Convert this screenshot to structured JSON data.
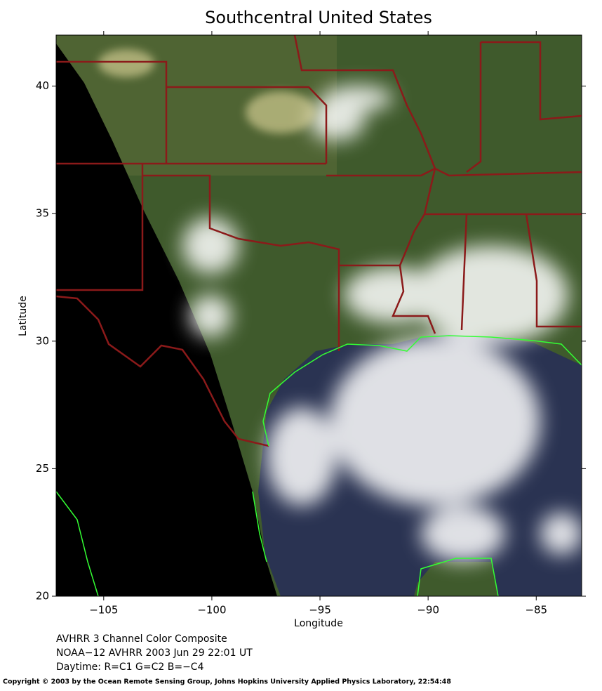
{
  "chart_data": {
    "type": "image",
    "title": "Southcentral United States",
    "x_label": "Longitude",
    "y_label": "Latitude",
    "xlim": [
      -107.2,
      -82.9
    ],
    "ylim": [
      20,
      42
    ],
    "xticks": [
      {
        "value": -105,
        "label": "−105"
      },
      {
        "value": -100,
        "label": "−100"
      },
      {
        "value": -95,
        "label": "−95"
      },
      {
        "value": -90,
        "label": "−90"
      },
      {
        "value": -85,
        "label": "−85"
      }
    ],
    "yticks": [
      20,
      25,
      30,
      35,
      40
    ],
    "caption": [
      "AVHRR 3 Channel Color Composite",
      "NOAA−12 AVHRR 2003 Jun 29 22:01 UT",
      "Daytime: R=C1 G=C2 B=−C4"
    ],
    "copyright": "Copyright © 2003 by the Ocean Remote Sensing Group, Johns Hopkins University Applied Physics Laboratory, 22:54:48"
  }
}
